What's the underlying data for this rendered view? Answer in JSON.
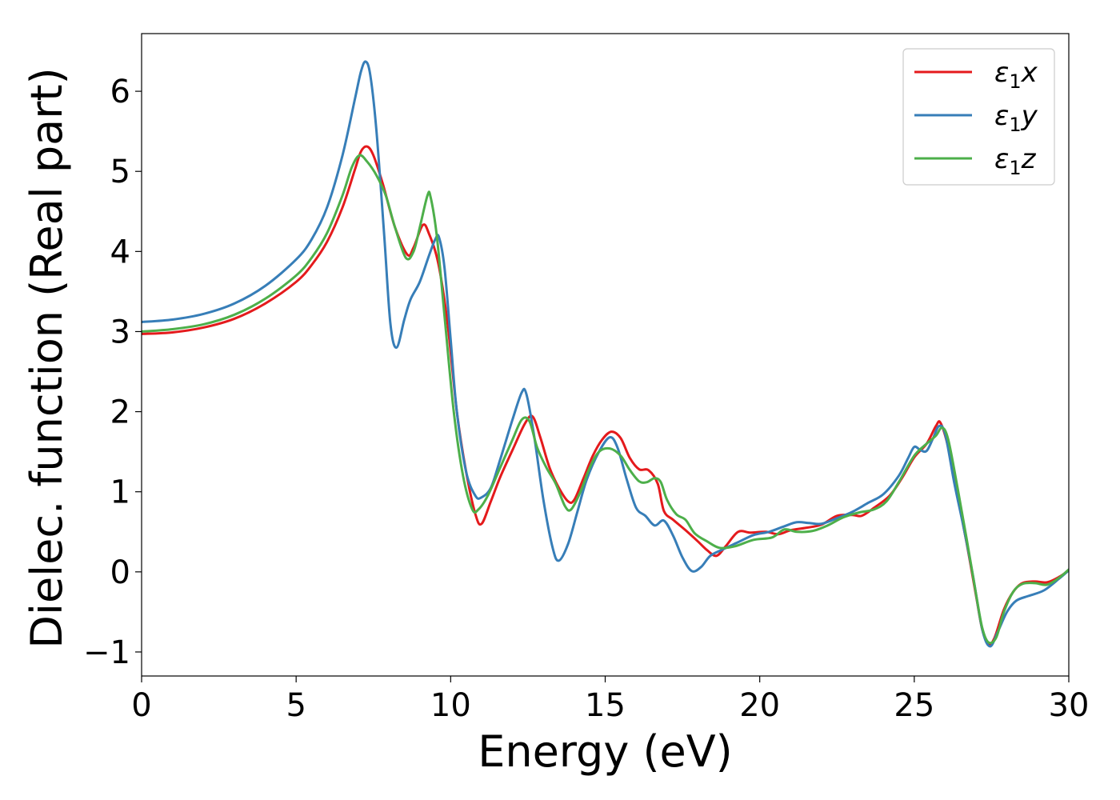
{
  "chart_data": {
    "type": "line",
    "xlabel": "Energy (eV)",
    "ylabel": "Dielec. function (Real part)",
    "xlim": [
      0,
      30
    ],
    "ylim": [
      -1.3,
      6.72
    ],
    "xticks": [
      0,
      5,
      10,
      15,
      20,
      25,
      30
    ],
    "yticks": [
      -1,
      0,
      1,
      2,
      3,
      4,
      5,
      6
    ],
    "xtick_labels": [
      "0",
      "5",
      "10",
      "15",
      "20",
      "25",
      "30"
    ],
    "ytick_labels": [
      "−1",
      "0",
      "1",
      "2",
      "3",
      "4",
      "5",
      "6"
    ],
    "grid": false,
    "legend_position": "top-right",
    "series": [
      {
        "name": "ε₁x",
        "name_base": "ε",
        "name_sub": "1",
        "name_suffix": "x",
        "color": "#e41a1c",
        "points": [
          [
            0,
            2.97
          ],
          [
            1,
            2.99
          ],
          [
            2,
            3.05
          ],
          [
            3,
            3.16
          ],
          [
            4,
            3.35
          ],
          [
            5,
            3.62
          ],
          [
            5.5,
            3.83
          ],
          [
            6,
            4.12
          ],
          [
            6.5,
            4.55
          ],
          [
            6.9,
            5.02
          ],
          [
            7.1,
            5.25
          ],
          [
            7.3,
            5.31
          ],
          [
            7.5,
            5.2
          ],
          [
            7.8,
            4.85
          ],
          [
            8.2,
            4.3
          ],
          [
            8.6,
            3.96
          ],
          [
            8.8,
            4.05
          ],
          [
            9.1,
            4.33
          ],
          [
            9.3,
            4.22
          ],
          [
            9.6,
            3.85
          ],
          [
            9.9,
            3.1
          ],
          [
            10.2,
            2.0
          ],
          [
            10.5,
            1.25
          ],
          [
            10.8,
            0.72
          ],
          [
            11.0,
            0.6
          ],
          [
            11.3,
            0.88
          ],
          [
            11.6,
            1.18
          ],
          [
            12.0,
            1.52
          ],
          [
            12.4,
            1.85
          ],
          [
            12.65,
            1.94
          ],
          [
            12.9,
            1.68
          ],
          [
            13.2,
            1.3
          ],
          [
            13.5,
            1.05
          ],
          [
            13.8,
            0.88
          ],
          [
            14.0,
            0.9
          ],
          [
            14.3,
            1.17
          ],
          [
            14.6,
            1.45
          ],
          [
            14.9,
            1.65
          ],
          [
            15.2,
            1.75
          ],
          [
            15.5,
            1.67
          ],
          [
            15.8,
            1.42
          ],
          [
            16.1,
            1.28
          ],
          [
            16.4,
            1.27
          ],
          [
            16.7,
            1.1
          ],
          [
            16.9,
            0.76
          ],
          [
            17.2,
            0.65
          ],
          [
            17.6,
            0.52
          ],
          [
            18.0,
            0.38
          ],
          [
            18.3,
            0.27
          ],
          [
            18.6,
            0.2
          ],
          [
            18.9,
            0.32
          ],
          [
            19.3,
            0.5
          ],
          [
            19.7,
            0.49
          ],
          [
            20.2,
            0.5
          ],
          [
            20.6,
            0.47
          ],
          [
            21.0,
            0.52
          ],
          [
            21.5,
            0.55
          ],
          [
            22.0,
            0.59
          ],
          [
            22.5,
            0.7
          ],
          [
            23.0,
            0.71
          ],
          [
            23.3,
            0.7
          ],
          [
            23.7,
            0.8
          ],
          [
            24.2,
            0.95
          ],
          [
            24.6,
            1.17
          ],
          [
            25.0,
            1.43
          ],
          [
            25.4,
            1.6
          ],
          [
            25.7,
            1.82
          ],
          [
            25.85,
            1.86
          ],
          [
            26.1,
            1.55
          ],
          [
            26.4,
            0.95
          ],
          [
            26.7,
            0.35
          ],
          [
            27.0,
            -0.3
          ],
          [
            27.2,
            -0.72
          ],
          [
            27.4,
            -0.9
          ],
          [
            27.6,
            -0.82
          ],
          [
            27.9,
            -0.47
          ],
          [
            28.2,
            -0.25
          ],
          [
            28.5,
            -0.14
          ],
          [
            28.9,
            -0.12
          ],
          [
            29.3,
            -0.13
          ],
          [
            29.7,
            -0.06
          ],
          [
            30.0,
            0.02
          ]
        ]
      },
      {
        "name": "ε₁y",
        "name_base": "ε",
        "name_sub": "1",
        "name_suffix": "y",
        "color": "#377eb8",
        "points": [
          [
            0,
            3.12
          ],
          [
            1,
            3.15
          ],
          [
            2,
            3.22
          ],
          [
            3,
            3.35
          ],
          [
            4,
            3.57
          ],
          [
            5,
            3.9
          ],
          [
            5.5,
            4.15
          ],
          [
            6,
            4.55
          ],
          [
            6.5,
            5.2
          ],
          [
            6.9,
            5.9
          ],
          [
            7.1,
            6.25
          ],
          [
            7.25,
            6.37
          ],
          [
            7.4,
            6.2
          ],
          [
            7.6,
            5.5
          ],
          [
            7.85,
            4.2
          ],
          [
            8.05,
            3.1
          ],
          [
            8.25,
            2.8
          ],
          [
            8.5,
            3.15
          ],
          [
            8.7,
            3.4
          ],
          [
            9.0,
            3.62
          ],
          [
            9.3,
            3.95
          ],
          [
            9.5,
            4.15
          ],
          [
            9.62,
            4.18
          ],
          [
            9.8,
            3.8
          ],
          [
            10.0,
            2.9
          ],
          [
            10.2,
            2.0
          ],
          [
            10.5,
            1.25
          ],
          [
            10.8,
            0.95
          ],
          [
            11.0,
            0.93
          ],
          [
            11.3,
            1.05
          ],
          [
            11.6,
            1.4
          ],
          [
            12.0,
            1.9
          ],
          [
            12.3,
            2.24
          ],
          [
            12.45,
            2.22
          ],
          [
            12.7,
            1.7
          ],
          [
            13.0,
            0.9
          ],
          [
            13.3,
            0.3
          ],
          [
            13.5,
            0.14
          ],
          [
            13.8,
            0.35
          ],
          [
            14.1,
            0.75
          ],
          [
            14.4,
            1.15
          ],
          [
            14.8,
            1.5
          ],
          [
            15.15,
            1.68
          ],
          [
            15.4,
            1.55
          ],
          [
            15.7,
            1.15
          ],
          [
            16.0,
            0.8
          ],
          [
            16.3,
            0.7
          ],
          [
            16.6,
            0.58
          ],
          [
            16.9,
            0.64
          ],
          [
            17.2,
            0.45
          ],
          [
            17.5,
            0.18
          ],
          [
            17.8,
            0.01
          ],
          [
            18.1,
            0.06
          ],
          [
            18.4,
            0.2
          ],
          [
            18.8,
            0.28
          ],
          [
            19.3,
            0.37
          ],
          [
            19.8,
            0.46
          ],
          [
            20.3,
            0.5
          ],
          [
            20.8,
            0.57
          ],
          [
            21.2,
            0.62
          ],
          [
            21.6,
            0.61
          ],
          [
            22.0,
            0.6
          ],
          [
            22.5,
            0.67
          ],
          [
            23.0,
            0.75
          ],
          [
            23.5,
            0.86
          ],
          [
            24.0,
            0.97
          ],
          [
            24.5,
            1.2
          ],
          [
            24.8,
            1.42
          ],
          [
            25.0,
            1.56
          ],
          [
            25.2,
            1.52
          ],
          [
            25.4,
            1.51
          ],
          [
            25.6,
            1.66
          ],
          [
            25.8,
            1.82
          ],
          [
            26.0,
            1.72
          ],
          [
            26.3,
            1.1
          ],
          [
            26.6,
            0.55
          ],
          [
            26.9,
            -0.05
          ],
          [
            27.2,
            -0.72
          ],
          [
            27.45,
            -0.93
          ],
          [
            27.7,
            -0.75
          ],
          [
            28.0,
            -0.5
          ],
          [
            28.3,
            -0.36
          ],
          [
            28.7,
            -0.3
          ],
          [
            29.2,
            -0.23
          ],
          [
            29.7,
            -0.08
          ],
          [
            30.0,
            0.02
          ]
        ]
      },
      {
        "name": "ε₁z",
        "name_base": "ε",
        "name_sub": "1",
        "name_suffix": "z",
        "color": "#4daf4a",
        "points": [
          [
            0,
            3.0
          ],
          [
            1,
            3.03
          ],
          [
            2,
            3.09
          ],
          [
            3,
            3.21
          ],
          [
            4,
            3.41
          ],
          [
            5,
            3.7
          ],
          [
            5.5,
            3.92
          ],
          [
            6,
            4.23
          ],
          [
            6.5,
            4.7
          ],
          [
            6.8,
            5.05
          ],
          [
            7.05,
            5.2
          ],
          [
            7.3,
            5.12
          ],
          [
            7.6,
            4.95
          ],
          [
            7.9,
            4.7
          ],
          [
            8.2,
            4.3
          ],
          [
            8.55,
            3.92
          ],
          [
            8.8,
            4.0
          ],
          [
            9.0,
            4.3
          ],
          [
            9.25,
            4.7
          ],
          [
            9.35,
            4.68
          ],
          [
            9.55,
            4.2
          ],
          [
            9.8,
            3.2
          ],
          [
            10.1,
            2.0
          ],
          [
            10.4,
            1.2
          ],
          [
            10.7,
            0.78
          ],
          [
            10.9,
            0.78
          ],
          [
            11.2,
            0.95
          ],
          [
            11.6,
            1.3
          ],
          [
            12.0,
            1.65
          ],
          [
            12.3,
            1.9
          ],
          [
            12.55,
            1.88
          ],
          [
            12.8,
            1.55
          ],
          [
            13.1,
            1.3
          ],
          [
            13.4,
            1.1
          ],
          [
            13.7,
            0.82
          ],
          [
            13.9,
            0.78
          ],
          [
            14.2,
            1.0
          ],
          [
            14.5,
            1.3
          ],
          [
            14.8,
            1.5
          ],
          [
            15.15,
            1.54
          ],
          [
            15.5,
            1.45
          ],
          [
            15.8,
            1.27
          ],
          [
            16.1,
            1.13
          ],
          [
            16.35,
            1.12
          ],
          [
            16.6,
            1.17
          ],
          [
            16.8,
            1.12
          ],
          [
            17.0,
            0.9
          ],
          [
            17.3,
            0.72
          ],
          [
            17.6,
            0.65
          ],
          [
            17.9,
            0.48
          ],
          [
            18.3,
            0.38
          ],
          [
            18.7,
            0.3
          ],
          [
            19.2,
            0.32
          ],
          [
            19.8,
            0.4
          ],
          [
            20.4,
            0.43
          ],
          [
            20.8,
            0.53
          ],
          [
            21.2,
            0.5
          ],
          [
            21.7,
            0.51
          ],
          [
            22.2,
            0.58
          ],
          [
            22.7,
            0.68
          ],
          [
            23.2,
            0.74
          ],
          [
            23.7,
            0.78
          ],
          [
            24.1,
            0.88
          ],
          [
            24.5,
            1.12
          ],
          [
            25.0,
            1.45
          ],
          [
            25.4,
            1.6
          ],
          [
            25.7,
            1.7
          ],
          [
            25.9,
            1.8
          ],
          [
            26.1,
            1.65
          ],
          [
            26.4,
            1.05
          ],
          [
            26.7,
            0.4
          ],
          [
            27.0,
            -0.28
          ],
          [
            27.2,
            -0.7
          ],
          [
            27.4,
            -0.88
          ],
          [
            27.65,
            -0.82
          ],
          [
            27.9,
            -0.5
          ],
          [
            28.2,
            -0.25
          ],
          [
            28.5,
            -0.15
          ],
          [
            28.9,
            -0.14
          ],
          [
            29.3,
            -0.16
          ],
          [
            29.7,
            -0.07
          ],
          [
            30.0,
            0.03
          ]
        ]
      }
    ]
  }
}
